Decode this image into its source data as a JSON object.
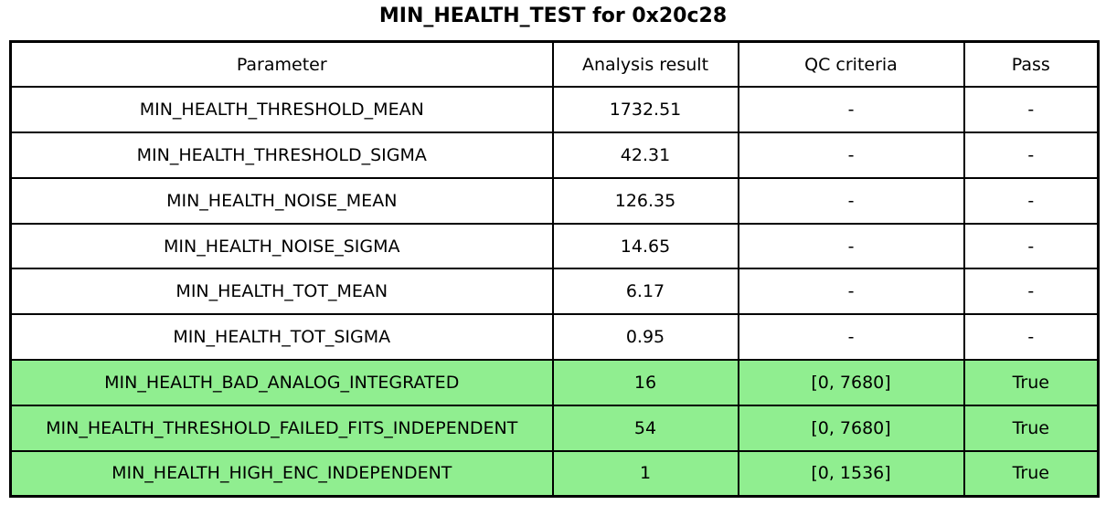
{
  "title": "MIN_HEALTH_TEST for 0x20c28",
  "colors": {
    "background": "#FFFFFF",
    "border": "#000000",
    "text": "#000000",
    "pass_row_bg": "#90EE90"
  },
  "table": {
    "columns": [
      "Parameter",
      "Analysis result",
      "QC criteria",
      "Pass"
    ],
    "rows": [
      {
        "parameter": "MIN_HEALTH_THRESHOLD_MEAN",
        "analysis_result": "1732.51",
        "qc_criteria": "-",
        "pass": "-",
        "highlighted": false
      },
      {
        "parameter": "MIN_HEALTH_THRESHOLD_SIGMA",
        "analysis_result": "42.31",
        "qc_criteria": "-",
        "pass": "-",
        "highlighted": false
      },
      {
        "parameter": "MIN_HEALTH_NOISE_MEAN",
        "analysis_result": "126.35",
        "qc_criteria": "-",
        "pass": "-",
        "highlighted": false
      },
      {
        "parameter": "MIN_HEALTH_NOISE_SIGMA",
        "analysis_result": "14.65",
        "qc_criteria": "-",
        "pass": "-",
        "highlighted": false
      },
      {
        "parameter": "MIN_HEALTH_TOT_MEAN",
        "analysis_result": "6.17",
        "qc_criteria": "-",
        "pass": "-",
        "highlighted": false
      },
      {
        "parameter": "MIN_HEALTH_TOT_SIGMA",
        "analysis_result": "0.95",
        "qc_criteria": "-",
        "pass": "-",
        "highlighted": false
      },
      {
        "parameter": "MIN_HEALTH_BAD_ANALOG_INTEGRATED",
        "analysis_result": "16",
        "qc_criteria": "[0, 7680]",
        "pass": "True",
        "highlighted": true
      },
      {
        "parameter": "MIN_HEALTH_THRESHOLD_FAILED_FITS_INDEPENDENT",
        "analysis_result": "54",
        "qc_criteria": "[0, 7680]",
        "pass": "True",
        "highlighted": true
      },
      {
        "parameter": "MIN_HEALTH_HIGH_ENC_INDEPENDENT",
        "analysis_result": "1",
        "qc_criteria": "[0, 1536]",
        "pass": "True",
        "highlighted": true
      }
    ]
  },
  "chart_data": {
    "type": "table",
    "title": "MIN_HEALTH_TEST for 0x20c28",
    "columns": [
      "Parameter",
      "Analysis result",
      "QC criteria",
      "Pass"
    ],
    "rows": [
      [
        "MIN_HEALTH_THRESHOLD_MEAN",
        1732.51,
        "-",
        "-"
      ],
      [
        "MIN_HEALTH_THRESHOLD_SIGMA",
        42.31,
        "-",
        "-"
      ],
      [
        "MIN_HEALTH_NOISE_MEAN",
        126.35,
        "-",
        "-"
      ],
      [
        "MIN_HEALTH_NOISE_SIGMA",
        14.65,
        "-",
        "-"
      ],
      [
        "MIN_HEALTH_TOT_MEAN",
        6.17,
        "-",
        "-"
      ],
      [
        "MIN_HEALTH_TOT_SIGMA",
        0.95,
        "-",
        "-"
      ],
      [
        "MIN_HEALTH_BAD_ANALOG_INTEGRATED",
        16,
        "[0, 7680]",
        "True"
      ],
      [
        "MIN_HEALTH_THRESHOLD_FAILED_FITS_INDEPENDENT",
        54,
        "[0, 7680]",
        "True"
      ],
      [
        "MIN_HEALTH_HIGH_ENC_INDEPENDENT",
        1,
        "[0, 1536]",
        "True"
      ]
    ],
    "layout": {
      "highlighted_rows": [
        6,
        7,
        8
      ],
      "highlight_color": "#90EE90",
      "grid": true,
      "header_row": true
    }
  }
}
